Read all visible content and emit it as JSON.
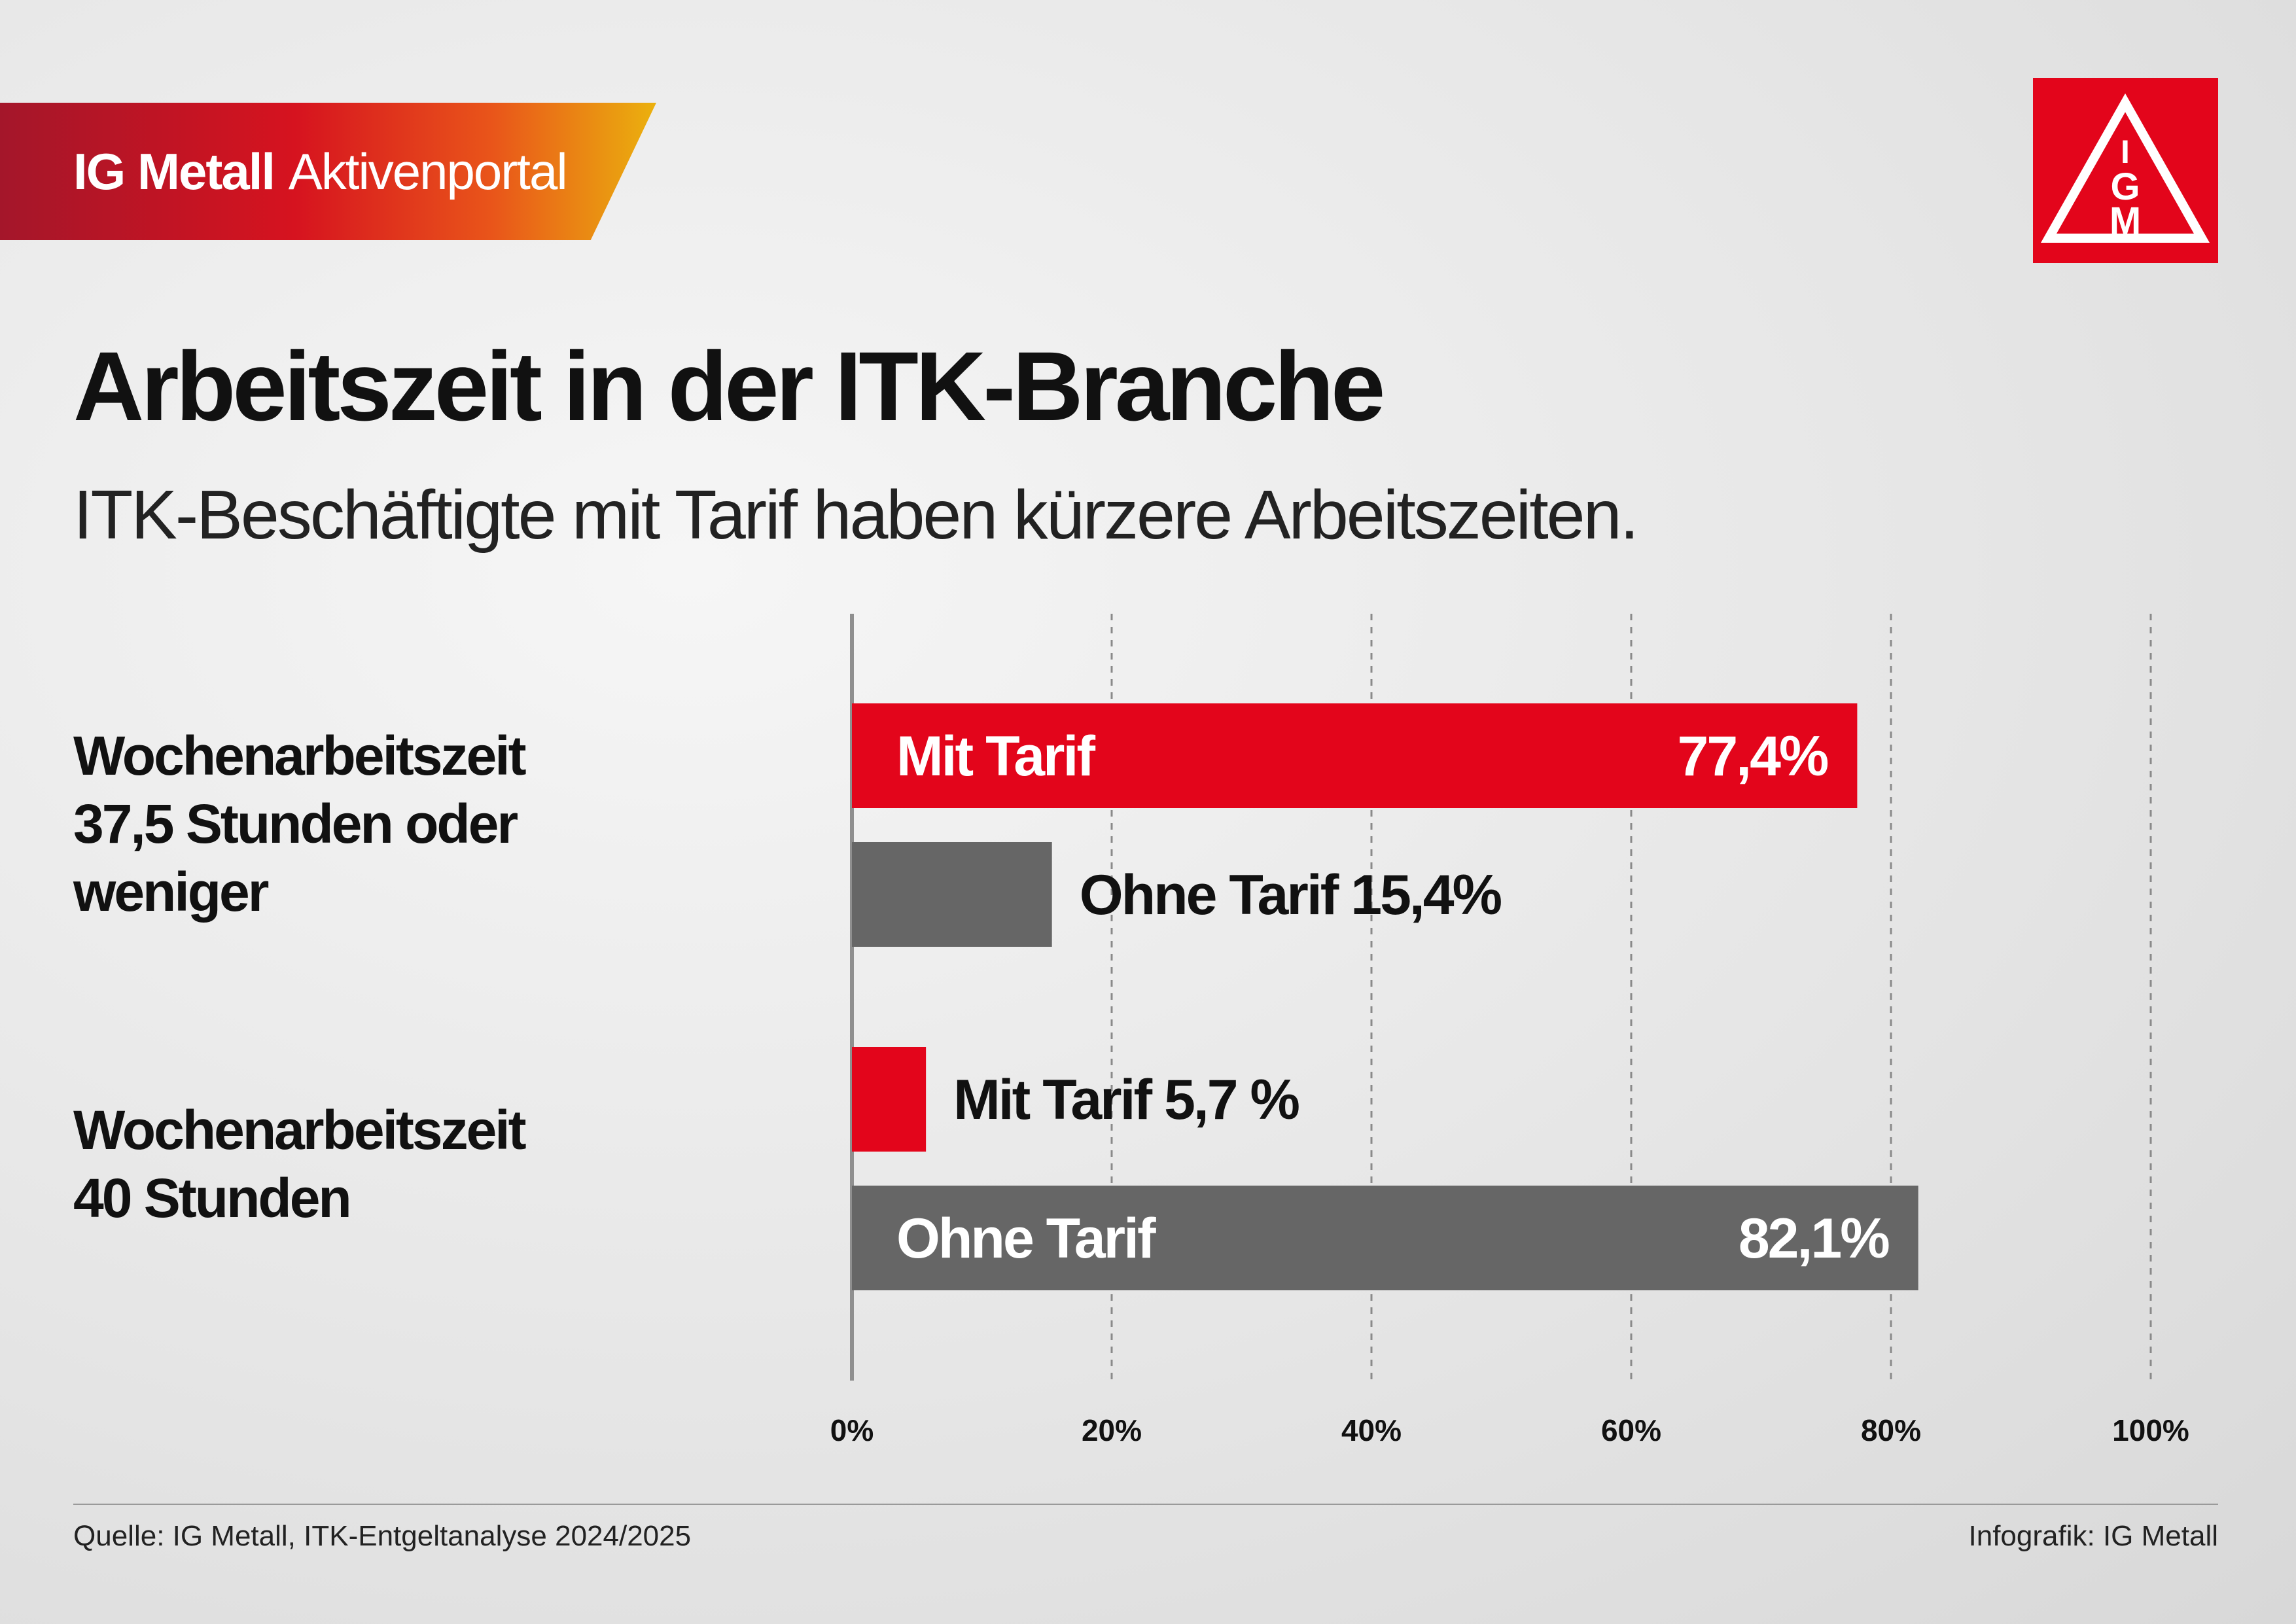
{
  "header": {
    "brand_bold": "IG Metall",
    "brand_light": "Aktivenportal",
    "logo_letters": [
      "I",
      "G",
      "M"
    ]
  },
  "title": "Arbeitszeit in der ITK-Branche",
  "subtitle": "ITK-Beschäftigte mit Tarif haben kürzere Arbeitszeiten.",
  "colors": {
    "mit_tarif": "#e3051b",
    "ohne_tarif": "#666666",
    "brand_red": "#e3051b"
  },
  "chart_data": {
    "type": "bar",
    "orientation": "horizontal",
    "categories": [
      "Wochenarbeitszeit 37,5 Stunden oder weniger",
      "Wochenarbeitszeit 40 Stunden"
    ],
    "category_labels": [
      [
        "Wochenarbeitszeit",
        "37,5 Stunden oder",
        "weniger"
      ],
      [
        "Wochenarbeitszeit",
        "40 Stunden"
      ]
    ],
    "series": [
      {
        "name": "Mit Tarif",
        "values": [
          77.4,
          5.7
        ],
        "value_labels": [
          "77,4%",
          "5,7 %"
        ],
        "color": "#e3051b"
      },
      {
        "name": "Ohne Tarif",
        "values": [
          15.4,
          82.1
        ],
        "value_labels": [
          "15,4%",
          "82,1%"
        ],
        "color": "#666666"
      }
    ],
    "xlim": [
      0,
      100
    ],
    "xticks": [
      0,
      20,
      40,
      60,
      80,
      100
    ],
    "xtick_labels": [
      "0%",
      "20%",
      "40%",
      "60%",
      "80%",
      "100%"
    ],
    "grid": "vertical dashed",
    "legend": "none (labels on bars)"
  },
  "footer": {
    "source": "Quelle: IG Metall, ITK-Entgeltanalyse 2024/2025",
    "credit": "Infografik: IG Metall"
  }
}
